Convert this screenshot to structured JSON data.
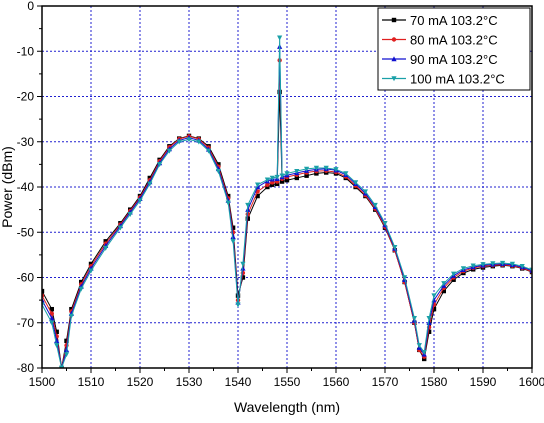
{
  "chart_data": {
    "type": "line",
    "xlabel": "Wavelength (nm)",
    "ylabel": "Power (dBm)",
    "xlim": [
      1500,
      1600
    ],
    "ylim": [
      -80,
      0
    ],
    "xticks": [
      1500,
      1510,
      1520,
      1530,
      1540,
      1550,
      1560,
      1570,
      1580,
      1590,
      1600
    ],
    "yticks": [
      0,
      -10,
      -20,
      -30,
      -40,
      -50,
      -60,
      -70,
      -80
    ],
    "x_tick_labels": [
      "1500",
      "1510",
      "1520",
      "1530",
      "1540",
      "1550",
      "1560",
      "1570",
      "1580",
      "1590",
      "1600"
    ],
    "y_tick_labels": [
      "0",
      "-10",
      "-20",
      "-30",
      "-40",
      "-50",
      "-60",
      "-70",
      "-80"
    ],
    "grid": true,
    "legend_position": "top-right",
    "x": [
      1500,
      1502,
      1503,
      1504,
      1505,
      1506,
      1508,
      1510,
      1513,
      1516,
      1518,
      1520,
      1522,
      1524,
      1526,
      1528,
      1530,
      1532,
      1534,
      1536,
      1538,
      1539,
      1540,
      1541,
      1542,
      1544,
      1546,
      1547,
      1548,
      1548.5,
      1549,
      1550,
      1552,
      1554,
      1556,
      1558,
      1560,
      1562,
      1564,
      1566,
      1568,
      1570,
      1572,
      1574,
      1576,
      1577,
      1578,
      1579,
      1580,
      1582,
      1584,
      1586,
      1588,
      1590,
      1592,
      1594,
      1596,
      1598,
      1600
    ],
    "series": [
      {
        "name": "70 mA 103.2°C",
        "color": "#000000",
        "marker": "square",
        "values": [
          -63,
          -67,
          -72,
          -80,
          -74,
          -67,
          -61,
          -57,
          -52,
          -48,
          -45,
          -42,
          -38,
          -34,
          -31,
          -29.3,
          -28.7,
          -29.3,
          -31,
          -35,
          -42,
          -49,
          -64,
          -60,
          -47,
          -42,
          -40,
          -39.5,
          -39.3,
          -19,
          -38.8,
          -38.5,
          -38,
          -37.5,
          -37,
          -36.8,
          -37,
          -38,
          -40,
          -42,
          -45,
          -49,
          -54,
          -61,
          -70,
          -76,
          -78,
          -72,
          -67,
          -63,
          -60.5,
          -59,
          -58.2,
          -57.8,
          -57.5,
          -57.3,
          -57.5,
          -58,
          -58.8
        ]
      },
      {
        "name": "80 mA 103.2°C",
        "color": "#e02020",
        "marker": "circle",
        "values": [
          -64,
          -68,
          -73,
          -80,
          -75,
          -67.5,
          -61.5,
          -57.5,
          -52.5,
          -48.3,
          -45.3,
          -42.3,
          -38.5,
          -34.3,
          -31.2,
          -29.4,
          -28.8,
          -29.4,
          -31.3,
          -35.5,
          -42.5,
          -50,
          -65,
          -59,
          -46,
          -41,
          -39.5,
          -39,
          -38.8,
          -12,
          -38.2,
          -37.8,
          -37.3,
          -36.8,
          -36.5,
          -36.4,
          -36.7,
          -37.7,
          -39.7,
          -41.8,
          -44.8,
          -48.8,
          -54,
          -61,
          -70,
          -76,
          -77.5,
          -71,
          -66,
          -62.3,
          -60,
          -58.6,
          -57.9,
          -57.5,
          -57.3,
          -57.2,
          -57.4,
          -57.9,
          -58.7
        ]
      },
      {
        "name": "90 mA 103.2°C",
        "color": "#1010d0",
        "marker": "triangle-up",
        "values": [
          -65,
          -69,
          -74,
          -80,
          -76,
          -68,
          -62,
          -58,
          -53,
          -48.6,
          -45.6,
          -42.6,
          -38.9,
          -34.7,
          -31.6,
          -29.7,
          -29.1,
          -29.7,
          -31.7,
          -36,
          -43,
          -51,
          -65.5,
          -58,
          -45,
          -40,
          -38.7,
          -38.3,
          -38.2,
          -9,
          -37.8,
          -37.4,
          -36.9,
          -36.4,
          -36.1,
          -36,
          -36.3,
          -37.3,
          -39.3,
          -41.4,
          -44.4,
          -48.4,
          -53.6,
          -60.5,
          -69.5,
          -75.5,
          -77,
          -70,
          -65,
          -61.8,
          -59.6,
          -58.3,
          -57.7,
          -57.3,
          -57.1,
          -57,
          -57.2,
          -57.7,
          -58.5
        ]
      },
      {
        "name": "100 mA 103.2°C",
        "color": "#1aa0a8",
        "marker": "triangle-down",
        "values": [
          -66,
          -70,
          -75,
          -80,
          -77,
          -68.5,
          -62.5,
          -58.5,
          -53.5,
          -49,
          -46,
          -43,
          -39.3,
          -35,
          -32,
          -30,
          -29.5,
          -30,
          -32,
          -36.5,
          -43.5,
          -52,
          -66,
          -57,
          -44,
          -39.5,
          -38.4,
          -38,
          -37.8,
          -7,
          -37.5,
          -37,
          -36.5,
          -36,
          -35.8,
          -35.8,
          -36.1,
          -37,
          -39,
          -41,
          -44,
          -48,
          -53.3,
          -60,
          -69,
          -75,
          -76.5,
          -69,
          -64,
          -61.3,
          -59.2,
          -58,
          -57.4,
          -57.1,
          -56.9,
          -56.8,
          -57,
          -57.5,
          -58.3
        ]
      }
    ]
  }
}
